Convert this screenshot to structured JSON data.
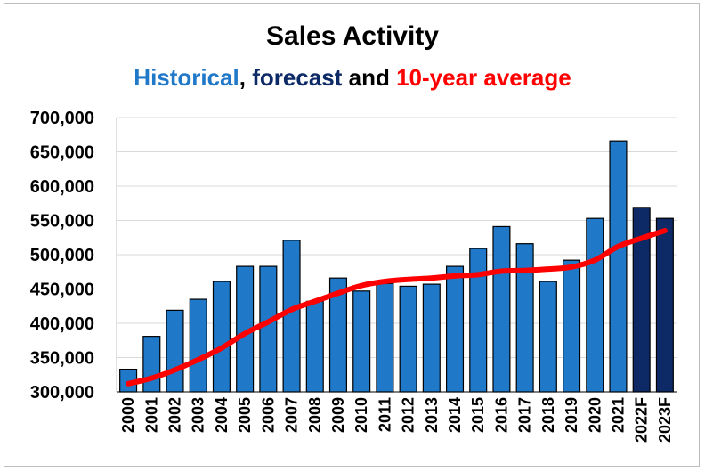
{
  "chart_data": {
    "type": "bar",
    "title": "Sales Activity",
    "subtitle_parts": [
      {
        "text": "Historical",
        "color": "#1f78c8"
      },
      {
        "text": ", ",
        "color": "#000000"
      },
      {
        "text": "forecast",
        "color": "#0d2a66"
      },
      {
        "text": " and ",
        "color": "#000000"
      },
      {
        "text": "10-year average",
        "color": "#ff0000"
      }
    ],
    "categories": [
      "2000",
      "2001",
      "2002",
      "2003",
      "2004",
      "2005",
      "2006",
      "2007",
      "2008",
      "2009",
      "2010",
      "2011",
      "2012",
      "2013",
      "2014",
      "2015",
      "2016",
      "2017",
      "2018",
      "2019",
      "2020",
      "2021",
      "2022F",
      "2023F"
    ],
    "series": [
      {
        "type": "bar",
        "values": [
          333000,
          381000,
          419000,
          435000,
          461000,
          483000,
          483000,
          521000,
          432000,
          466000,
          447000,
          458000,
          454000,
          457000,
          483000,
          509000,
          541000,
          516000,
          461000,
          492000,
          553000,
          666000,
          569000,
          553000
        ],
        "colors": {
          "historical": "#1f78c8",
          "forecast": "#0d2a66"
        },
        "forecast_start_index": 22
      },
      {
        "type": "line",
        "color": "#ff0000",
        "values": [
          312000,
          320000,
          332000,
          347000,
          364000,
          385000,
          402000,
          420000,
          432000,
          444000,
          455000,
          461000,
          464000,
          466000,
          469000,
          471000,
          476000,
          477000,
          479000,
          482000,
          492000,
          512000,
          524000,
          535000
        ]
      }
    ],
    "ylim": [
      300000,
      700000
    ],
    "yticks": [
      "300,000",
      "350,000",
      "400,000",
      "450,000",
      "500,000",
      "550,000",
      "600,000",
      "650,000",
      "700,000"
    ],
    "grid": true,
    "legend": "none"
  }
}
